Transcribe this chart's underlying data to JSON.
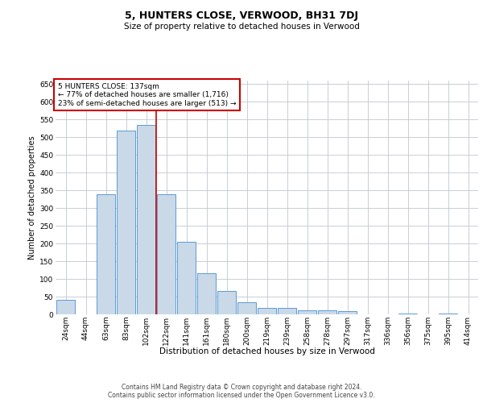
{
  "title": "5, HUNTERS CLOSE, VERWOOD, BH31 7DJ",
  "subtitle": "Size of property relative to detached houses in Verwood",
  "xlabel": "Distribution of detached houses by size in Verwood",
  "ylabel": "Number of detached properties",
  "footer_line1": "Contains HM Land Registry data © Crown copyright and database right 2024.",
  "footer_line2": "Contains public sector information licensed under the Open Government Licence v3.0.",
  "categories": [
    "24sqm",
    "44sqm",
    "63sqm",
    "83sqm",
    "102sqm",
    "122sqm",
    "141sqm",
    "161sqm",
    "180sqm",
    "200sqm",
    "219sqm",
    "239sqm",
    "258sqm",
    "278sqm",
    "297sqm",
    "317sqm",
    "336sqm",
    "356sqm",
    "375sqm",
    "395sqm",
    "414sqm"
  ],
  "values": [
    40,
    0,
    340,
    520,
    535,
    340,
    205,
    115,
    65,
    35,
    18,
    18,
    12,
    12,
    10,
    0,
    0,
    3,
    0,
    2,
    0
  ],
  "bar_color": "#c9d9e8",
  "bar_edge_color": "#5b9bd5",
  "ylim": [
    0,
    660
  ],
  "yticks": [
    0,
    50,
    100,
    150,
    200,
    250,
    300,
    350,
    400,
    450,
    500,
    550,
    600,
    650
  ],
  "property_line_x": 4.5,
  "property_label": "5 HUNTERS CLOSE: 137sqm",
  "annotation_line1": "← 77% of detached houses are smaller (1,716)",
  "annotation_line2": "23% of semi-detached houses are larger (513) →",
  "annotation_box_color": "#ffffff",
  "annotation_box_edge_color": "#cc0000",
  "property_line_color": "#cc0000",
  "grid_color": "#c0c8d0",
  "background_color": "#ffffff",
  "title_fontsize": 9,
  "subtitle_fontsize": 7.5,
  "xlabel_fontsize": 7.5,
  "ylabel_fontsize": 7,
  "tick_fontsize": 6.5,
  "annotation_fontsize": 6.5,
  "footer_fontsize": 5.5
}
